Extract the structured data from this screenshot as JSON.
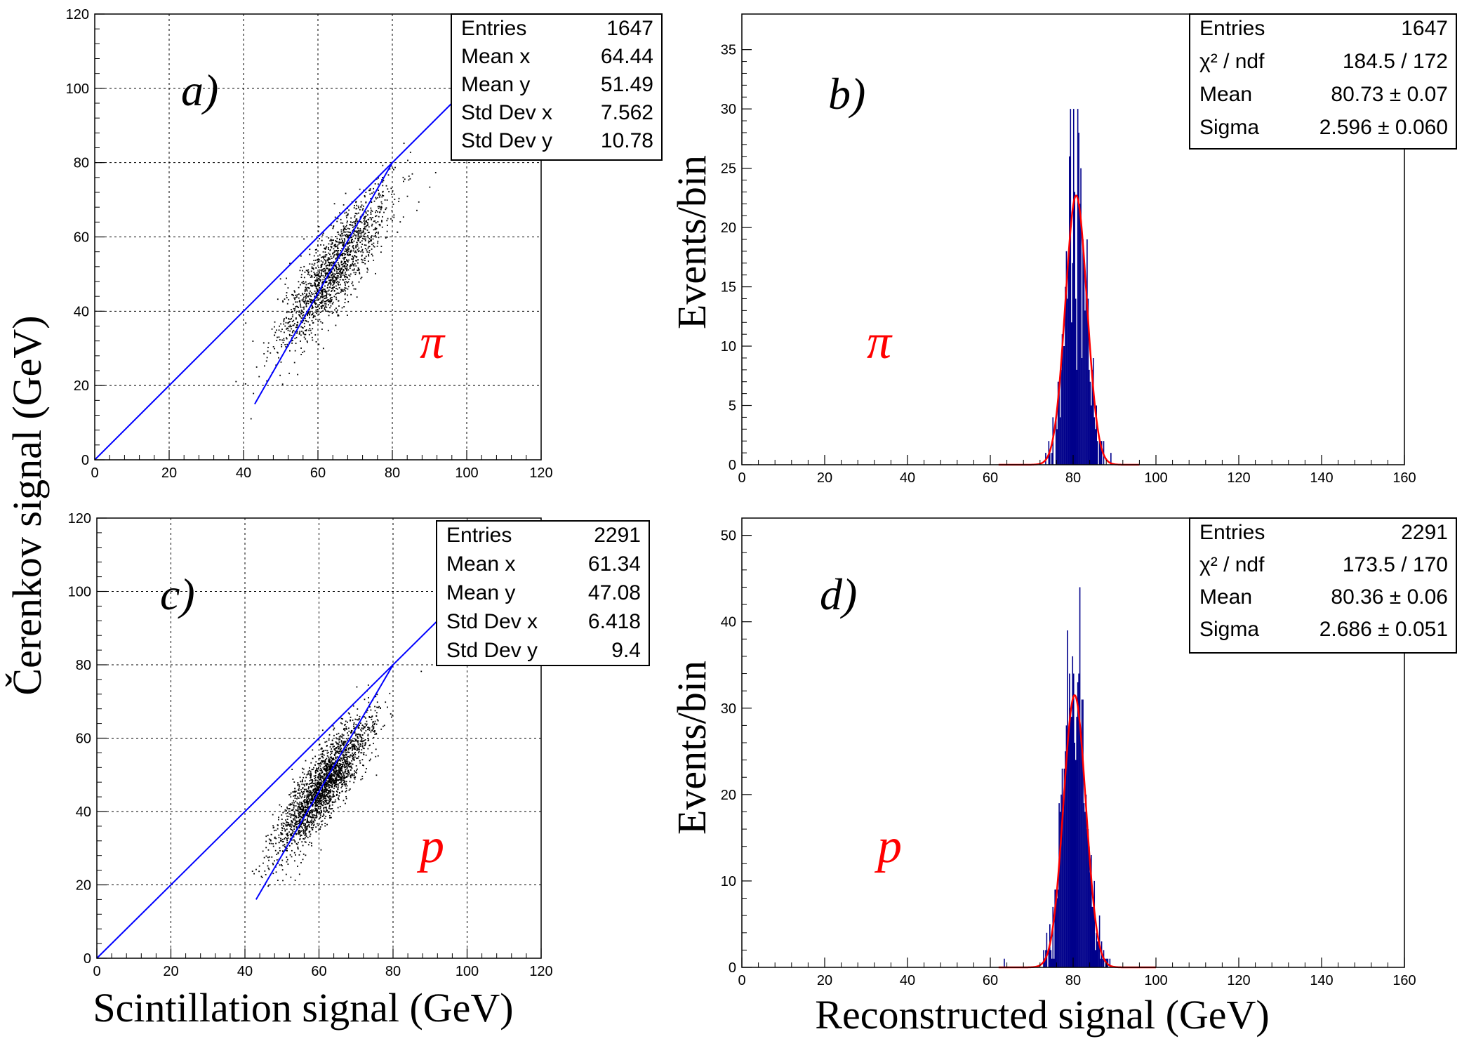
{
  "chart_data": [
    {
      "id": "a",
      "type": "scatter",
      "panel_label": "a)",
      "particle": "π",
      "xlim": [
        0,
        120
      ],
      "ylim": [
        0,
        120
      ],
      "xticks": [
        "0",
        "20",
        "40",
        "60",
        "80",
        "100",
        "120"
      ],
      "yticks": [
        "0",
        "20",
        "40",
        "60",
        "80",
        "100",
        "120"
      ],
      "grid": true,
      "stats": [
        {
          "label": "Entries",
          "value": "1647"
        },
        {
          "label": "Mean x",
          "value": "64.44"
        },
        {
          "label": "Mean y",
          "value": "51.49"
        },
        {
          "label": "Std Dev x",
          "value": "7.562"
        },
        {
          "label": "Std Dev y",
          "value": "10.78"
        }
      ],
      "cloud": {
        "n": 1647,
        "mean_x": 64.44,
        "mean_y": 51.49,
        "std_x": 7.562,
        "std_y": 10.78
      },
      "lines": [
        {
          "x": [
            0,
            100
          ],
          "y": [
            0,
            100
          ]
        },
        {
          "x": [
            43,
            80
          ],
          "y": [
            15,
            80
          ]
        }
      ],
      "line_color": "#0000ff",
      "point_color": "#000000"
    },
    {
      "id": "b",
      "type": "histogram",
      "panel_label": "b)",
      "particle": "π",
      "xlim": [
        0,
        160
      ],
      "ylim": [
        0,
        38
      ],
      "xticks": [
        "0",
        "20",
        "40",
        "60",
        "80",
        "100",
        "120",
        "140",
        "160"
      ],
      "yticks": [
        "0",
        "5",
        "10",
        "15",
        "20",
        "25",
        "30",
        "35"
      ],
      "ytick_values": [
        0,
        5,
        10,
        15,
        20,
        25,
        30,
        35
      ],
      "grid": false,
      "stats": [
        {
          "label": "Entries",
          "value": "1647"
        },
        {
          "label": "χ² / ndf",
          "value": "184.5 / 172"
        },
        {
          "label": "Mean",
          "value": "80.73 ± 0.07"
        },
        {
          "label": "Sigma",
          "value": "2.596 ± 0.060"
        }
      ],
      "fit": {
        "amplitude": 22.7,
        "mean": 80.73,
        "sigma": 2.596,
        "x_range": [
          62,
          96
        ]
      },
      "entries": 1647,
      "bin_width": 0.25,
      "hist_color": "#00008b",
      "fit_color": "#ff0000"
    },
    {
      "id": "c",
      "type": "scatter",
      "panel_label": "c)",
      "particle": "p",
      "xlim": [
        0,
        120
      ],
      "ylim": [
        0,
        120
      ],
      "xticks": [
        "0",
        "20",
        "40",
        "60",
        "80",
        "100",
        "120"
      ],
      "yticks": [
        "0",
        "20",
        "40",
        "60",
        "80",
        "100",
        "120"
      ],
      "grid": true,
      "stats": [
        {
          "label": "Entries",
          "value": "2291"
        },
        {
          "label": "Mean x",
          "value": "61.34"
        },
        {
          "label": "Mean y",
          "value": "47.08"
        },
        {
          "label": "Std Dev x",
          "value": "6.418"
        },
        {
          "label": "Std Dev y",
          "value": "9.4"
        }
      ],
      "cloud": {
        "n": 2291,
        "mean_x": 61.34,
        "mean_y": 47.08,
        "std_x": 6.418,
        "std_y": 9.4
      },
      "lines": [
        {
          "x": [
            0,
            93
          ],
          "y": [
            0,
            93
          ]
        },
        {
          "x": [
            43,
            80
          ],
          "y": [
            16,
            80
          ]
        }
      ],
      "line_color": "#0000ff",
      "point_color": "#000000"
    },
    {
      "id": "d",
      "type": "histogram",
      "panel_label": "d)",
      "particle": "p",
      "xlim": [
        0,
        160
      ],
      "ylim": [
        0,
        52
      ],
      "xticks": [
        "0",
        "20",
        "40",
        "60",
        "80",
        "100",
        "120",
        "140",
        "160"
      ],
      "yticks": [
        "0",
        "10",
        "20",
        "30",
        "40",
        "50"
      ],
      "ytick_values": [
        0,
        10,
        20,
        30,
        40,
        50
      ],
      "grid": false,
      "stats": [
        {
          "label": "Entries",
          "value": "2291"
        },
        {
          "label": "χ² / ndf",
          "value": "173.5 / 170"
        },
        {
          "label": "Mean",
          "value": "80.36 ± 0.06"
        },
        {
          "label": "Sigma",
          "value": "2.686 ± 0.051"
        }
      ],
      "fit": {
        "amplitude": 31.5,
        "mean": 80.36,
        "sigma": 2.686,
        "x_range": [
          62,
          100
        ]
      },
      "entries": 2291,
      "bin_width": 0.25,
      "hist_color": "#00008b",
      "fit_color": "#ff0000"
    }
  ],
  "shared_labels": {
    "ylabel_left": "Čerenkov signal (GeV)",
    "xlabel_left": "Scintillation signal (GeV)",
    "ylabel_right_top": "Events/bin",
    "ylabel_right_bottom": "Events/bin",
    "xlabel_right": "Reconstructed signal (GeV)"
  }
}
